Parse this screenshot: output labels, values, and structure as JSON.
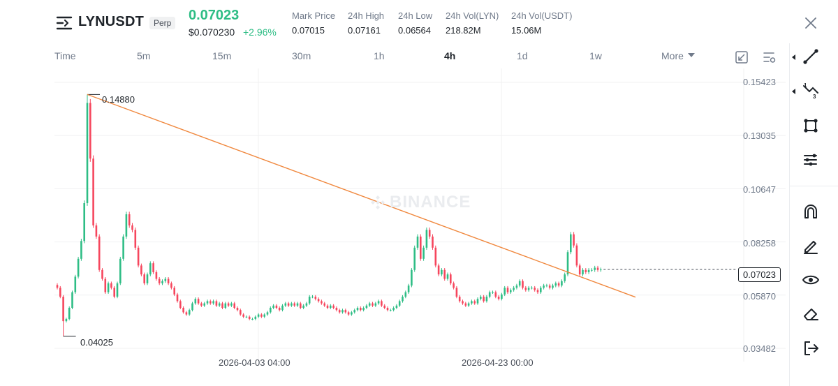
{
  "header": {
    "symbol": "LYNUSDT",
    "contract_type": "Perp",
    "last_price": "0.07023",
    "usd_price": "$0.070230",
    "change_pct": "+2.96%",
    "stats": [
      {
        "label": "Mark Price",
        "value": "0.07015"
      },
      {
        "label": "24h High",
        "value": "0.07161"
      },
      {
        "label": "24h Low",
        "value": "0.06564"
      },
      {
        "label": "24h Vol(LYN)",
        "value": "218.82M"
      },
      {
        "label": "24h Vol(USDT)",
        "value": "15.06M"
      }
    ]
  },
  "timeframes": {
    "items": [
      "Time",
      "5m",
      "15m",
      "30m",
      "1h",
      "4h",
      "1d",
      "1w",
      "More"
    ],
    "active": "4h"
  },
  "chart": {
    "watermark": "BINANCE",
    "price_axis": [
      "0.15423",
      "0.13035",
      "0.10647",
      "0.08258",
      "0.05870",
      "0.03482"
    ],
    "time_axis": [
      "2026-04-03 04:00",
      "2026-04-23 00:00"
    ],
    "high_marker": "0.14880",
    "low_marker": "0.04025",
    "current_price": "0.07023",
    "colors": {
      "up": "#2ebd85",
      "down": "#f6465d",
      "trendline": "#f0883e",
      "grid": "#f0f1f2"
    }
  },
  "chart_data": {
    "type": "candlestick",
    "ylim": [
      0.03482,
      0.15423
    ],
    "yticks": [
      0.15423,
      0.13035,
      0.10647,
      0.08258,
      0.0587,
      0.03482
    ],
    "xticks": [
      "2026-04-03 04:00",
      "2026-04-23 00:00"
    ],
    "high": 0.1488,
    "low": 0.04025,
    "last": 0.07023,
    "trendline": {
      "from": 0.1488,
      "to": 0.0578
    },
    "closes": [
      0.062,
      0.058,
      0.047,
      0.048,
      0.053,
      0.06,
      0.067,
      0.075,
      0.083,
      0.1,
      0.145,
      0.12,
      0.09,
      0.085,
      0.07,
      0.066,
      0.06,
      0.064,
      0.062,
      0.058,
      0.064,
      0.075,
      0.085,
      0.095,
      0.09,
      0.088,
      0.08,
      0.072,
      0.068,
      0.064,
      0.068,
      0.073,
      0.069,
      0.066,
      0.064,
      0.065,
      0.066,
      0.064,
      0.062,
      0.059,
      0.056,
      0.053,
      0.051,
      0.05,
      0.052,
      0.055,
      0.057,
      0.055,
      0.054,
      0.055,
      0.056,
      0.055,
      0.056,
      0.054,
      0.055,
      0.053,
      0.055,
      0.054,
      0.055,
      0.053,
      0.052,
      0.05,
      0.049,
      0.049,
      0.048,
      0.048,
      0.049,
      0.05,
      0.049,
      0.05,
      0.051,
      0.053,
      0.054,
      0.053,
      0.052,
      0.054,
      0.055,
      0.054,
      0.055,
      0.054,
      0.055,
      0.053,
      0.054,
      0.055,
      0.058,
      0.058,
      0.057,
      0.056,
      0.055,
      0.054,
      0.053,
      0.054,
      0.053,
      0.052,
      0.051,
      0.052,
      0.051,
      0.05,
      0.051,
      0.052,
      0.053,
      0.052,
      0.053,
      0.054,
      0.055,
      0.054,
      0.055,
      0.056,
      0.054,
      0.053,
      0.052,
      0.052,
      0.053,
      0.054,
      0.056,
      0.058,
      0.06,
      0.063,
      0.07,
      0.08,
      0.085,
      0.075,
      0.08,
      0.088,
      0.085,
      0.08,
      0.072,
      0.068,
      0.07,
      0.066,
      0.068,
      0.064,
      0.062,
      0.058,
      0.056,
      0.055,
      0.054,
      0.055,
      0.056,
      0.055,
      0.057,
      0.058,
      0.056,
      0.058,
      0.06,
      0.06,
      0.058,
      0.057,
      0.059,
      0.062,
      0.06,
      0.061,
      0.062,
      0.063,
      0.065,
      0.062,
      0.061,
      0.062,
      0.062,
      0.061,
      0.06,
      0.062,
      0.063,
      0.063,
      0.062,
      0.063,
      0.064,
      0.063,
      0.065,
      0.068,
      0.078,
      0.086,
      0.081,
      0.072,
      0.068,
      0.07,
      0.069,
      0.07,
      0.07,
      0.071,
      0.07,
      0.0702
    ]
  }
}
